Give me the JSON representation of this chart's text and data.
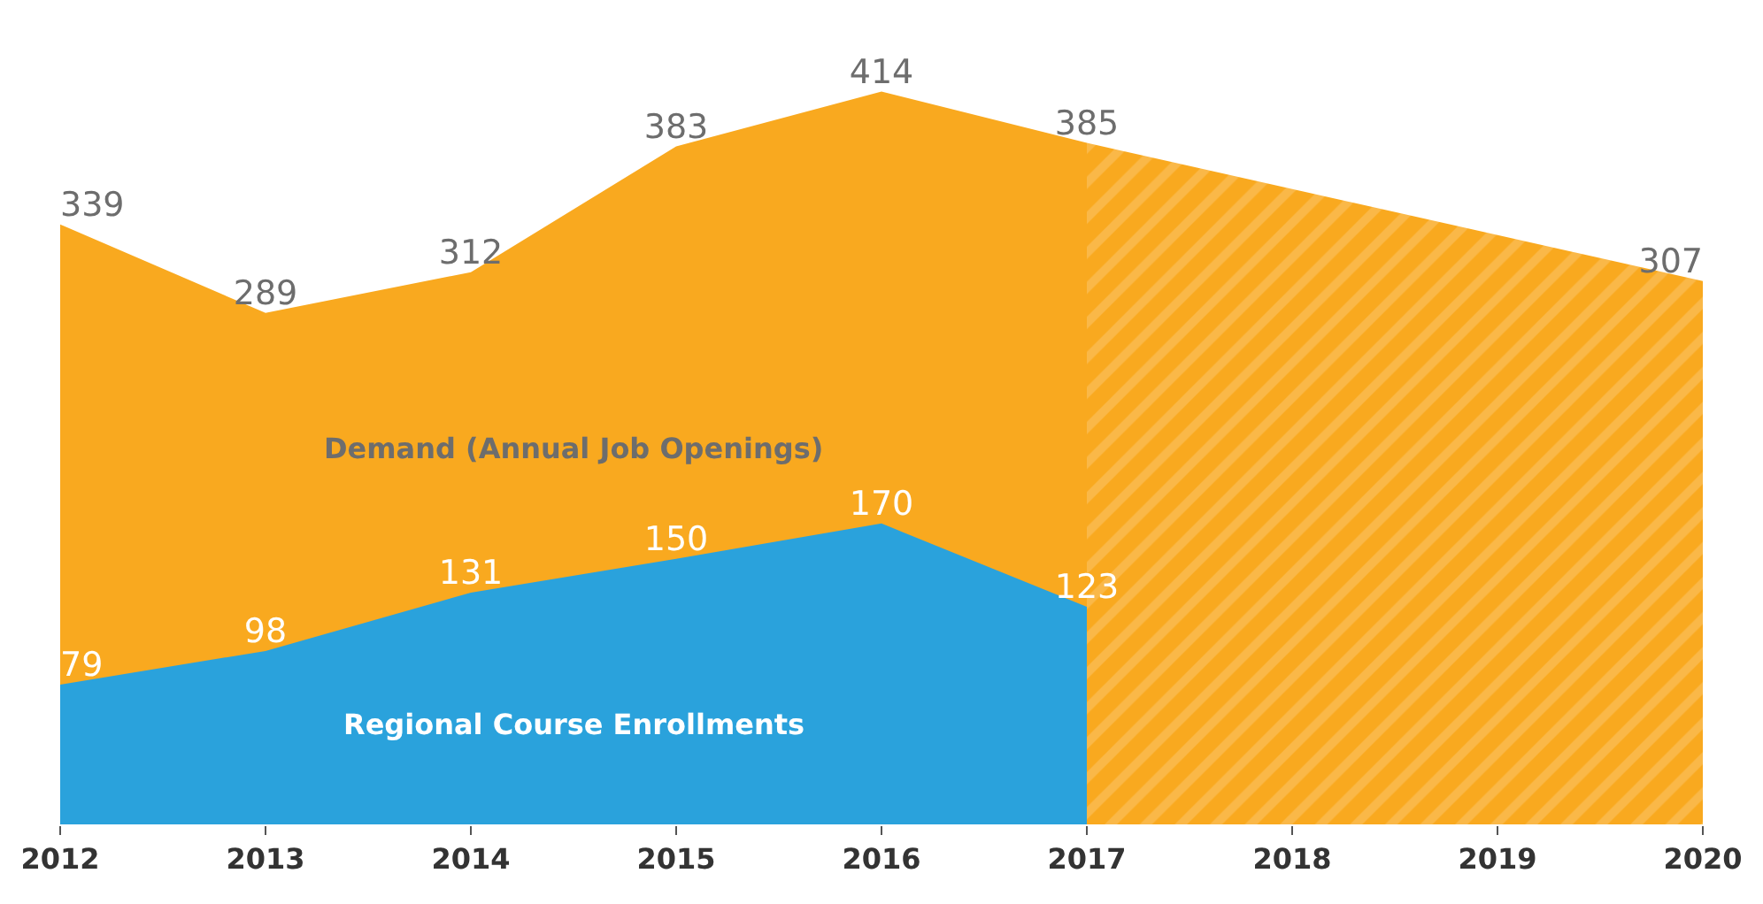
{
  "chart_data": {
    "type": "area",
    "data_labels": true,
    "xlim": [
      2012,
      2020
    ],
    "xticks": [
      2012,
      2013,
      2014,
      2015,
      2016,
      2017,
      2018,
      2019,
      2020
    ],
    "series": [
      {
        "name": "Demand (Annual Job Openings)",
        "color": "#f9a91f",
        "x": [
          2012,
          2013,
          2014,
          2015,
          2016,
          2017
        ],
        "values": [
          339,
          289,
          312,
          383,
          414,
          385
        ]
      },
      {
        "color": "#f9a91f",
        "x": [
          2017,
          2020
        ],
        "values": [
          385,
          307
        ],
        "value_labels": [
          null,
          "307"
        ]
      },
      {
        "name": "Regional Course Enrollments",
        "color": "#2aa2dc",
        "x": [
          2012,
          2013,
          2014,
          2015,
          2016,
          2017
        ],
        "values": [
          79,
          98,
          131,
          150,
          170,
          123
        ]
      }
    ]
  }
}
